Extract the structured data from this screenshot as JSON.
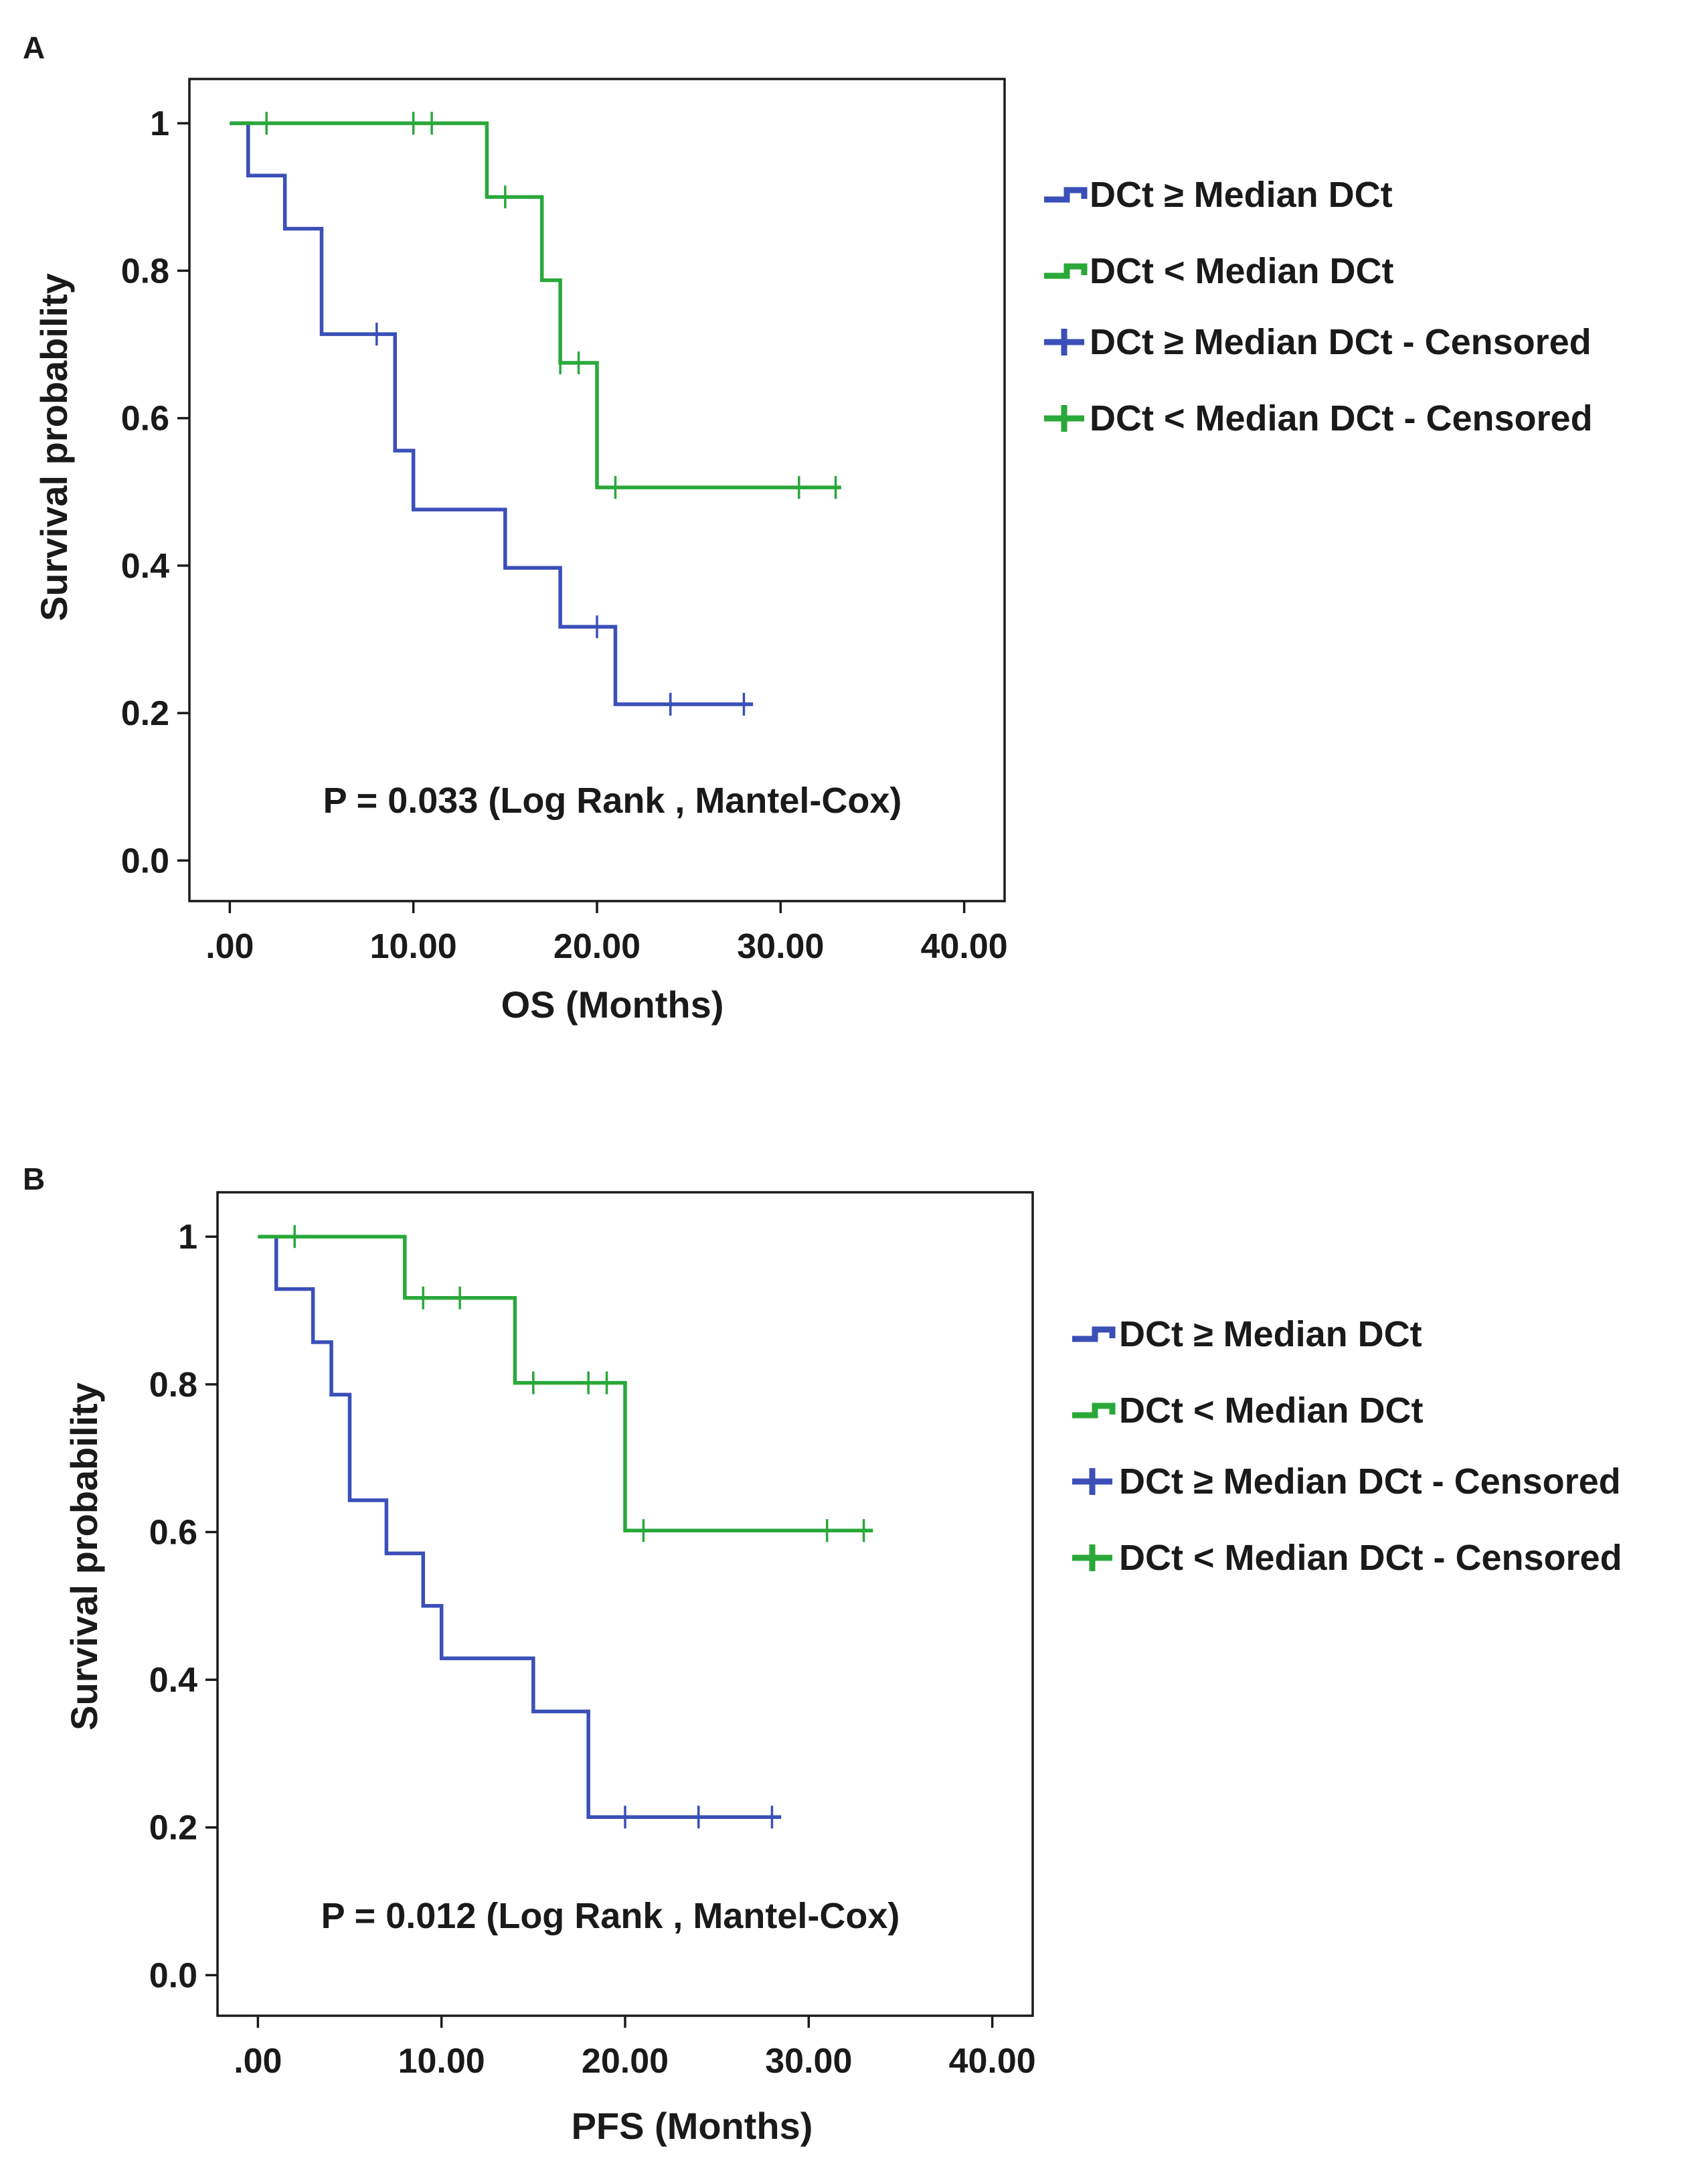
{
  "colors": {
    "blue": "#3a4fb8",
    "green": "#2aa83a",
    "axis": "#1a1a1a"
  },
  "chart_data": [
    {
      "type": "line",
      "subtype": "kaplan-meier",
      "panel_label": "A",
      "title": "",
      "xlabel": "OS (Months)",
      "ylabel": "Survival probability",
      "xlim": [
        -2.2,
        42.2
      ],
      "ylim": [
        -0.055,
        1.06
      ],
      "grid": false,
      "x_ticks": [
        0,
        10,
        20,
        30,
        40
      ],
      "x_tick_labels": [
        ".00",
        "10.00",
        "20.00",
        "30.00",
        "40.00"
      ],
      "y_ticks": [
        0,
        0.2,
        0.4,
        0.6,
        0.8,
        1
      ],
      "y_tick_labels": [
        "0.0",
        "0.2",
        "0.4",
        "0.6",
        "0.8",
        "1"
      ],
      "annotation": "P = 0.033 (Log Rank , Mantel-Cox)",
      "legend_position": "right",
      "legend": [
        {
          "label": "DCt ≥ Median DCt",
          "series": 0,
          "kind": "step"
        },
        {
          "label": "DCt < Median DCt",
          "series": 1,
          "kind": "step"
        },
        {
          "label": "DCt ≥ Median DCt - Censored",
          "series": 0,
          "kind": "censor"
        },
        {
          "label": "DCt < Median DCt - Censored",
          "series": 1,
          "kind": "censor"
        }
      ],
      "series": [
        {
          "name": "DCt ≥ Median DCt",
          "color": "blue",
          "steps": [
            [
              0,
              1
            ],
            [
              1,
              0.929
            ],
            [
              3,
              0.857
            ],
            [
              5,
              0.714
            ],
            [
              9,
              0.556
            ],
            [
              10,
              0.476
            ],
            [
              15,
              0.397
            ],
            [
              18,
              0.317
            ],
            [
              21,
              0.212
            ]
          ],
          "end": 28.5,
          "censored": [
            8,
            20,
            24,
            28
          ]
        },
        {
          "name": "DCt < Median DCt",
          "color": "green",
          "steps": [
            [
              0,
              1
            ],
            [
              14,
              0.9
            ],
            [
              17,
              0.787
            ],
            [
              18,
              0.675
            ],
            [
              20,
              0.506
            ]
          ],
          "end": 33.3,
          "censored": [
            2,
            10,
            11,
            15,
            18,
            19,
            21,
            31,
            33
          ]
        }
      ]
    },
    {
      "type": "line",
      "subtype": "kaplan-meier",
      "panel_label": "B",
      "title": "",
      "xlabel": "PFS (Months)",
      "ylabel": "Survival probability",
      "xlim": [
        -2.2,
        42.2
      ],
      "ylim": [
        -0.055,
        1.06
      ],
      "grid": false,
      "x_ticks": [
        0,
        10,
        20,
        30,
        40
      ],
      "x_tick_labels": [
        ".00",
        "10.00",
        "20.00",
        "30.00",
        "40.00"
      ],
      "y_ticks": [
        0,
        0.2,
        0.4,
        0.6,
        0.8,
        1
      ],
      "y_tick_labels": [
        "0.0",
        "0.2",
        "0.4",
        "0.6",
        "0.8",
        "1"
      ],
      "annotation": "P = 0.012 (Log Rank , Mantel-Cox)",
      "legend_position": "right",
      "legend": [
        {
          "label": "DCt ≥ Median DCt",
          "series": 0,
          "kind": "step"
        },
        {
          "label": "DCt < Median DCt",
          "series": 1,
          "kind": "step"
        },
        {
          "label": "DCt ≥ Median DCt - Censored",
          "series": 0,
          "kind": "censor"
        },
        {
          "label": "DCt < Median DCt - Censored",
          "series": 1,
          "kind": "censor"
        }
      ],
      "series": [
        {
          "name": "DCt ≥ Median DCt",
          "color": "blue",
          "steps": [
            [
              0,
              1
            ],
            [
              1,
              0.929
            ],
            [
              3,
              0.857
            ],
            [
              4,
              0.786
            ],
            [
              5,
              0.643
            ],
            [
              7,
              0.571
            ],
            [
              9,
              0.5
            ],
            [
              10,
              0.429
            ],
            [
              15,
              0.357
            ],
            [
              18,
              0.214
            ]
          ],
          "end": 28.5,
          "censored": [
            20,
            24,
            28
          ]
        },
        {
          "name": "DCt < Median DCt",
          "color": "green",
          "steps": [
            [
              0,
              1
            ],
            [
              8,
              0.917
            ],
            [
              14,
              0.802
            ],
            [
              20,
              0.602
            ]
          ],
          "end": 33.5,
          "censored": [
            2,
            9,
            11,
            15,
            18,
            19,
            21,
            31,
            33
          ]
        }
      ]
    }
  ]
}
